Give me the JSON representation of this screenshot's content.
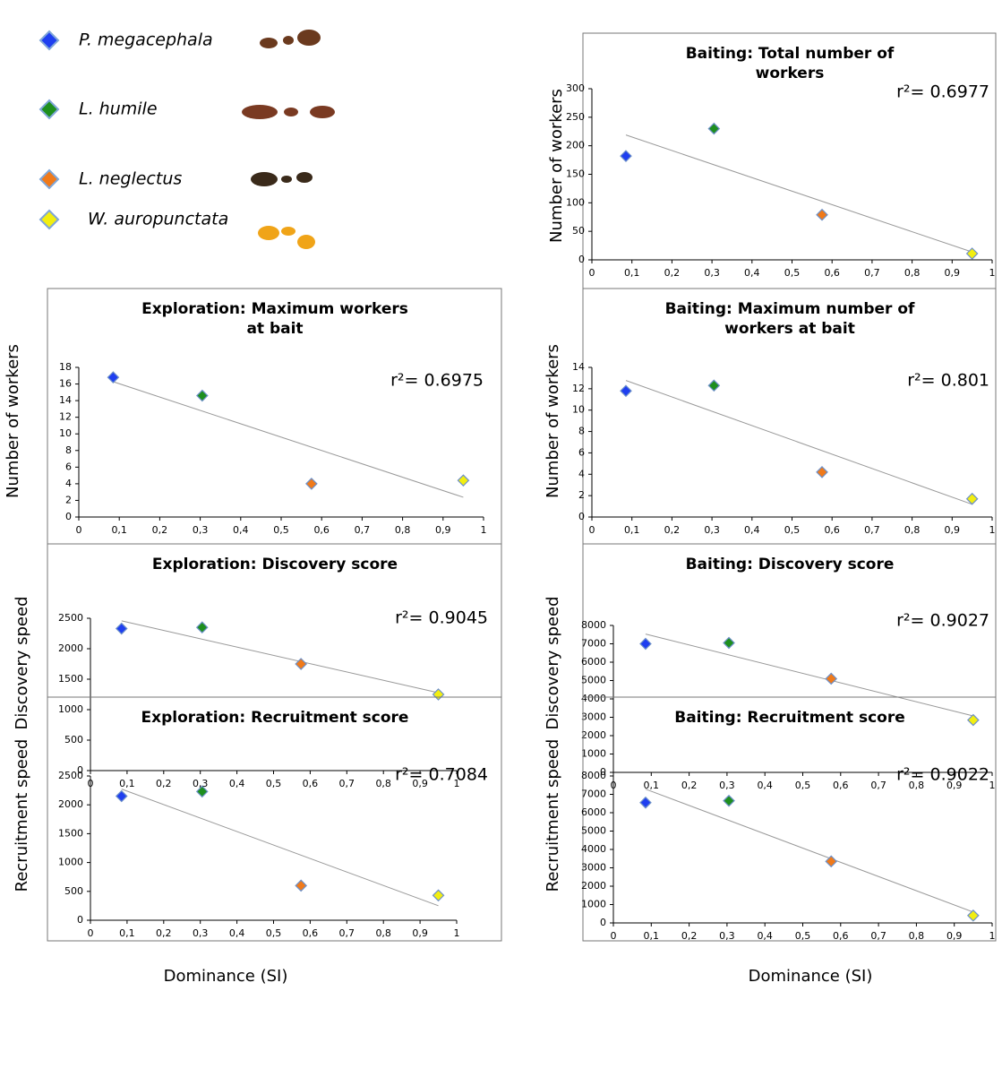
{
  "legend": [
    {
      "name": "P. megacephala",
      "color": "#1f3ff0"
    },
    {
      "name": "L. humile",
      "color": "#1e8f1e"
    },
    {
      "name": "L. neglectus",
      "color": "#f07a1a"
    },
    {
      "name": "W. auropunctata",
      "color": "#f2ee10"
    }
  ],
  "x_label": "Dominance (SI)",
  "chart_data": [
    {
      "type": "scatter",
      "title": "Baiting: Total number of workers",
      "y_label": "Number of workers",
      "annotation": "r²= 0.6977",
      "x": [
        0.085,
        0.305,
        0.575,
        0.95
      ],
      "values": [
        182,
        230,
        79,
        11
      ],
      "xlim": [
        0,
        1
      ],
      "ylim": [
        0,
        300
      ],
      "xticks": [
        0,
        {
          "value": 0.1,
          "label": "0,1"
        },
        {
          "value": 0.2,
          "label": "0,2"
        },
        {
          "value": 0.3,
          "label": "0,3"
        },
        {
          "value": 0.4,
          "label": "0,4"
        },
        {
          "value": 0.5,
          "label": "0,5"
        },
        {
          "value": 0.6,
          "label": "0,6"
        },
        {
          "value": 0.7,
          "label": "0,7"
        },
        {
          "value": 0.8,
          "label": "0,8"
        },
        {
          "value": 0.9,
          "label": "0,9"
        },
        1
      ],
      "yticks": [
        0,
        50,
        100,
        150,
        200,
        250,
        300
      ]
    },
    {
      "type": "scatter",
      "title": "Exploration: Maximum workers at bait",
      "y_label": "Number of workers",
      "annotation": "r²= 0.6975",
      "x": [
        0.085,
        0.305,
        0.575,
        0.95
      ],
      "values": [
        16.8,
        14.6,
        4.0,
        4.4
      ],
      "xlim": [
        0,
        1
      ],
      "ylim": [
        0,
        18
      ],
      "xticks": [
        0,
        {
          "value": 0.1,
          "label": "0,1"
        },
        {
          "value": 0.2,
          "label": "0,2"
        },
        {
          "value": 0.3,
          "label": "0,3"
        },
        {
          "value": 0.4,
          "label": "0,4"
        },
        {
          "value": 0.5,
          "label": "0,5"
        },
        {
          "value": 0.6,
          "label": "0,6"
        },
        {
          "value": 0.7,
          "label": "0,7"
        },
        {
          "value": 0.8,
          "label": "0,8"
        },
        {
          "value": 0.9,
          "label": "0,9"
        },
        1
      ],
      "yticks": [
        0,
        2,
        4,
        6,
        8,
        10,
        12,
        14,
        16,
        18
      ]
    },
    {
      "type": "scatter",
      "title": "Baiting: Maximum number of workers at bait",
      "y_label": "Number of workers",
      "annotation": "r²= 0.801",
      "x": [
        0.085,
        0.305,
        0.575,
        0.95
      ],
      "values": [
        11.8,
        12.3,
        4.2,
        1.7
      ],
      "xlim": [
        0,
        1
      ],
      "ylim": [
        0,
        14
      ],
      "xticks": [
        0,
        {
          "value": 0.1,
          "label": "0,1"
        },
        {
          "value": 0.2,
          "label": "0,2"
        },
        {
          "value": 0.3,
          "label": "0,3"
        },
        {
          "value": 0.4,
          "label": "0,4"
        },
        {
          "value": 0.5,
          "label": "0,5"
        },
        {
          "value": 0.6,
          "label": "0,6"
        },
        {
          "value": 0.7,
          "label": "0,7"
        },
        {
          "value": 0.8,
          "label": "0,8"
        },
        {
          "value": 0.9,
          "label": "0,9"
        },
        1
      ],
      "yticks": [
        0,
        2,
        4,
        6,
        8,
        10,
        12,
        14
      ]
    },
    {
      "type": "scatter",
      "title": "Exploration: Discovery score",
      "y_label": "Discovery speed",
      "annotation": "r²= 0.9045",
      "x": [
        0.085,
        0.305,
        0.575,
        0.95
      ],
      "values": [
        2330,
        2350,
        1750,
        1250
      ],
      "xlim": [
        0,
        1
      ],
      "ylim": [
        0,
        2500
      ],
      "xticks": [
        0,
        {
          "value": 0.1,
          "label": "0,1"
        },
        {
          "value": 0.2,
          "label": "0,2"
        },
        {
          "value": 0.3,
          "label": "0,3"
        },
        {
          "value": 0.4,
          "label": "0,4"
        },
        {
          "value": 0.5,
          "label": "0,5"
        },
        {
          "value": 0.6,
          "label": "0,6"
        },
        {
          "value": 0.7,
          "label": "0,7"
        },
        {
          "value": 0.8,
          "label": "0,8"
        },
        {
          "value": 0.9,
          "label": "0,9"
        },
        1
      ],
      "yticks": [
        0,
        500,
        1000,
        1500,
        2000,
        2500
      ]
    },
    {
      "type": "scatter",
      "title": "Baiting: Discovery score",
      "y_label": "Discovery speed",
      "annotation": "r²= 0.9027",
      "x": [
        0.085,
        0.305,
        0.575,
        0.95
      ],
      "values": [
        7000,
        7050,
        5100,
        2850
      ],
      "xlim": [
        0,
        1
      ],
      "ylim": [
        0,
        8000
      ],
      "xticks": [
        0,
        {
          "value": 0.1,
          "label": "0,1"
        },
        {
          "value": 0.2,
          "label": "0,2"
        },
        {
          "value": 0.3,
          "label": "0,3"
        },
        {
          "value": 0.4,
          "label": "0,4"
        },
        {
          "value": 0.5,
          "label": "0,5"
        },
        {
          "value": 0.6,
          "label": "0,6"
        },
        {
          "value": 0.7,
          "label": "0,7"
        },
        {
          "value": 0.8,
          "label": "0,8"
        },
        {
          "value": 0.9,
          "label": "0,9"
        },
        1
      ],
      "yticks": [
        0,
        1000,
        2000,
        3000,
        4000,
        5000,
        6000,
        7000,
        8000
      ]
    },
    {
      "type": "scatter",
      "title": "Exploration: Recruitment score",
      "y_label": "Recruitment speed",
      "annotation": "r²= 0.7084",
      "x": [
        0.085,
        0.305,
        0.575,
        0.95
      ],
      "values": [
        2150,
        2230,
        600,
        430
      ],
      "xlim": [
        0,
        1
      ],
      "ylim": [
        0,
        2500
      ],
      "xticks": [
        0,
        {
          "value": 0.1,
          "label": "0,1"
        },
        {
          "value": 0.2,
          "label": "0,2"
        },
        {
          "value": 0.3,
          "label": "0,3"
        },
        {
          "value": 0.4,
          "label": "0,4"
        },
        {
          "value": 0.5,
          "label": "0,5"
        },
        {
          "value": 0.6,
          "label": "0,6"
        },
        {
          "value": 0.7,
          "label": "0,7"
        },
        {
          "value": 0.8,
          "label": "0,8"
        },
        {
          "value": 0.9,
          "label": "0,9"
        },
        1
      ],
      "yticks": [
        0,
        500,
        1000,
        1500,
        2000,
        2500
      ]
    },
    {
      "type": "scatter",
      "title": "Baiting: Recruitment score",
      "y_label": "Recruitment speed",
      "annotation": "r²= 0.9022",
      "x": [
        0.085,
        0.305,
        0.575,
        0.95
      ],
      "values": [
        6550,
        6650,
        3350,
        400
      ],
      "xlim": [
        0,
        1
      ],
      "ylim": [
        0,
        8000
      ],
      "xticks": [
        0,
        {
          "value": 0.1,
          "label": "0,1"
        },
        {
          "value": 0.2,
          "label": "0,2"
        },
        {
          "value": 0.3,
          "label": "0,3"
        },
        {
          "value": 0.4,
          "label": "0,4"
        },
        {
          "value": 0.5,
          "label": "0,5"
        },
        {
          "value": 0.6,
          "label": "0,6"
        },
        {
          "value": 0.7,
          "label": "0,7"
        },
        {
          "value": 0.8,
          "label": "0,8"
        },
        {
          "value": 0.9,
          "label": "0,9"
        },
        1
      ],
      "yticks": [
        0,
        1000,
        2000,
        3000,
        4000,
        5000,
        6000,
        7000,
        8000
      ]
    }
  ]
}
